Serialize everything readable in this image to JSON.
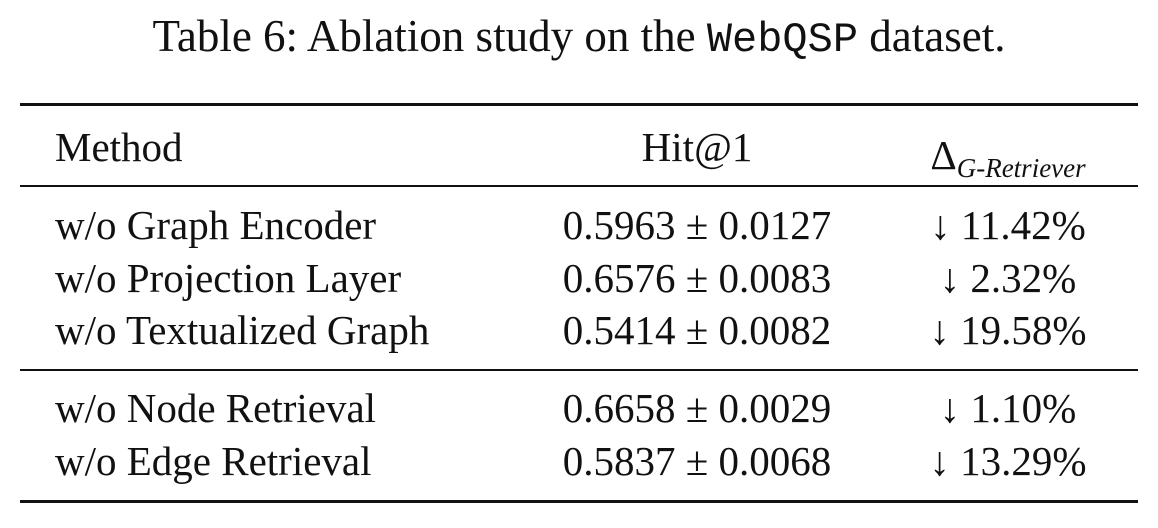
{
  "caption": {
    "prefix": "Table 6: Ablation study on the",
    "code": "WebQSP",
    "suffix": "dataset."
  },
  "table": {
    "header": {
      "method": "Method",
      "hit": "Hit@1",
      "delta": {
        "symbol": "Δ",
        "subscript": "G-Retriever"
      }
    },
    "groups": [
      [
        [
          "w/o Graph Encoder",
          "0.5963 ± 0.0127",
          "↓ 11.42%"
        ],
        [
          "w/o Projection Layer",
          "0.6576 ± 0.0083",
          "↓ 2.32%"
        ],
        [
          "w/o Textualized Graph",
          "0.5414 ± 0.0082",
          "↓ 19.58%"
        ]
      ],
      [
        [
          "w/o Node Retrieval",
          "0.6658 ± 0.0029",
          "↓ 1.10%"
        ],
        [
          "w/o Edge Retrieval",
          "0.5837 ± 0.0068",
          "↓ 13.29%"
        ]
      ]
    ]
  }
}
